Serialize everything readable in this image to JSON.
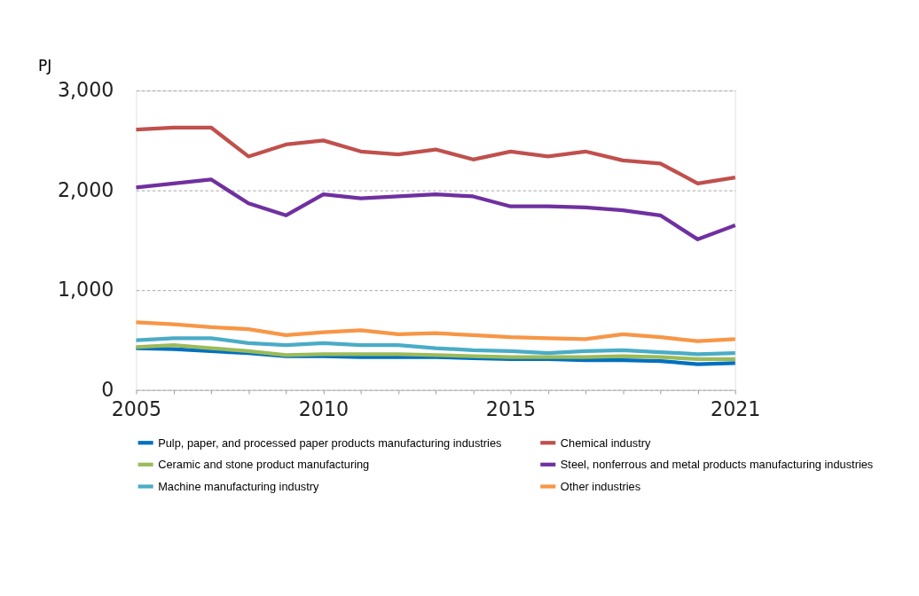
{
  "chart_data": {
    "type": "line",
    "ylabel": "PJ",
    "x": [
      2005,
      2006,
      2007,
      2008,
      2009,
      2010,
      2011,
      2012,
      2013,
      2014,
      2015,
      2016,
      2017,
      2018,
      2019,
      2020,
      2021
    ],
    "xlim": [
      2005,
      2021
    ],
    "xticks": [
      2005,
      {
        "value": 2006,
        "label": null
      },
      {
        "value": 2007,
        "label": null
      },
      {
        "value": 2008,
        "label": null
      },
      {
        "value": 2009,
        "label": null
      },
      2010,
      {
        "value": 2011,
        "label": null
      },
      {
        "value": 2012,
        "label": null
      },
      {
        "value": 2013,
        "label": null
      },
      {
        "value": 2014,
        "label": null
      },
      2015,
      {
        "value": 2016,
        "label": null
      },
      {
        "value": 2017,
        "label": null
      },
      {
        "value": 2018,
        "label": null
      },
      {
        "value": 2019,
        "label": null
      },
      {
        "value": 2020,
        "label": null
      },
      2021
    ],
    "ylim": [
      0,
      3000
    ],
    "yticks": [
      0,
      {
        "value": 1000,
        "label": "1,000"
      },
      {
        "value": 2000,
        "label": "2,000"
      },
      {
        "value": 3000,
        "label": "3,000"
      }
    ],
    "grid": "y",
    "legend": "bottom",
    "marker": "none",
    "line_style": "solid",
    "series": [
      {
        "name": "Pulp, paper, and processed paper products manufacturing industries",
        "color": "#0070c0",
        "values": [
          420,
          410,
          390,
          370,
          340,
          340,
          330,
          330,
          330,
          320,
          310,
          310,
          300,
          300,
          290,
          260,
          270
        ]
      },
      {
        "name": "Chemical industry",
        "color": "#c0504d",
        "values": [
          2610,
          2630,
          2630,
          2340,
          2460,
          2500,
          2390,
          2360,
          2410,
          2310,
          2390,
          2340,
          2390,
          2300,
          2270,
          2070,
          2130
        ]
      },
      {
        "name": "Ceramic and stone product manufacturing",
        "color": "#9bbb59",
        "values": [
          430,
          450,
          420,
          390,
          350,
          360,
          360,
          360,
          350,
          340,
          330,
          330,
          330,
          340,
          330,
          310,
          310
        ]
      },
      {
        "name": "Steel, nonferrous and metal products manufacturing industries",
        "color": "#7030a0",
        "values": [
          2030,
          2070,
          2110,
          1870,
          1750,
          1960,
          1920,
          1940,
          1960,
          1940,
          1840,
          1840,
          1830,
          1800,
          1750,
          1510,
          1650
        ]
      },
      {
        "name": "Machine manufacturing industry",
        "color": "#4aacc6",
        "values": [
          500,
          520,
          520,
          470,
          450,
          470,
          450,
          450,
          420,
          400,
          390,
          370,
          390,
          400,
          380,
          360,
          370
        ]
      },
      {
        "name": "Other industries",
        "color": "#f79646",
        "values": [
          680,
          660,
          630,
          610,
          550,
          580,
          600,
          560,
          570,
          550,
          530,
          520,
          510,
          560,
          530,
          490,
          510
        ]
      }
    ]
  }
}
